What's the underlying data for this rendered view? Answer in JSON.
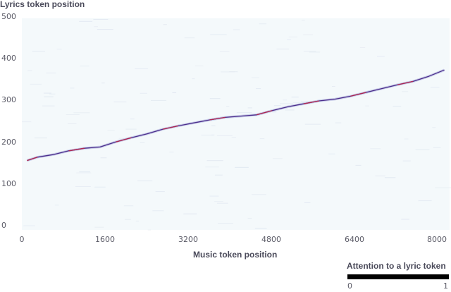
{
  "chart_data": {
    "type": "heatmap",
    "title": "",
    "xlabel": "Music token position",
    "ylabel": "Lyrics token position",
    "xlim": [
      0,
      8200
    ],
    "ylim": [
      0,
      500
    ],
    "x_ticks": [
      "0",
      "1600",
      "3200",
      "4800",
      "6400",
      "8000"
    ],
    "y_ticks": [
      "0",
      "100",
      "200",
      "300",
      "400",
      "500"
    ],
    "grid": false,
    "colorbar": {
      "title": "Attention to a lyric token",
      "min_label": "0",
      "max_label": "1"
    },
    "series": [
      {
        "x": [
          100,
          300,
          600,
          900,
          1200,
          1500,
          1800,
          2100,
          2400,
          2700,
          3000,
          3300,
          3600,
          3900,
          4200,
          4500,
          4800,
          5100,
          5400,
          5700,
          6000,
          6300,
          6600,
          6900,
          7200,
          7500,
          7800,
          8100
        ],
        "values": [
          164,
          172,
          178,
          187,
          193,
          196,
          208,
          218,
          227,
          238,
          246,
          253,
          260,
          266,
          269,
          272,
          282,
          291,
          298,
          305,
          309,
          316,
          325,
          334,
          343,
          351,
          363,
          378
        ]
      }
    ],
    "colors": {
      "background": "#f4f9fb",
      "line_main": "#4b2d8c",
      "line_hot": "#b2274f"
    }
  }
}
